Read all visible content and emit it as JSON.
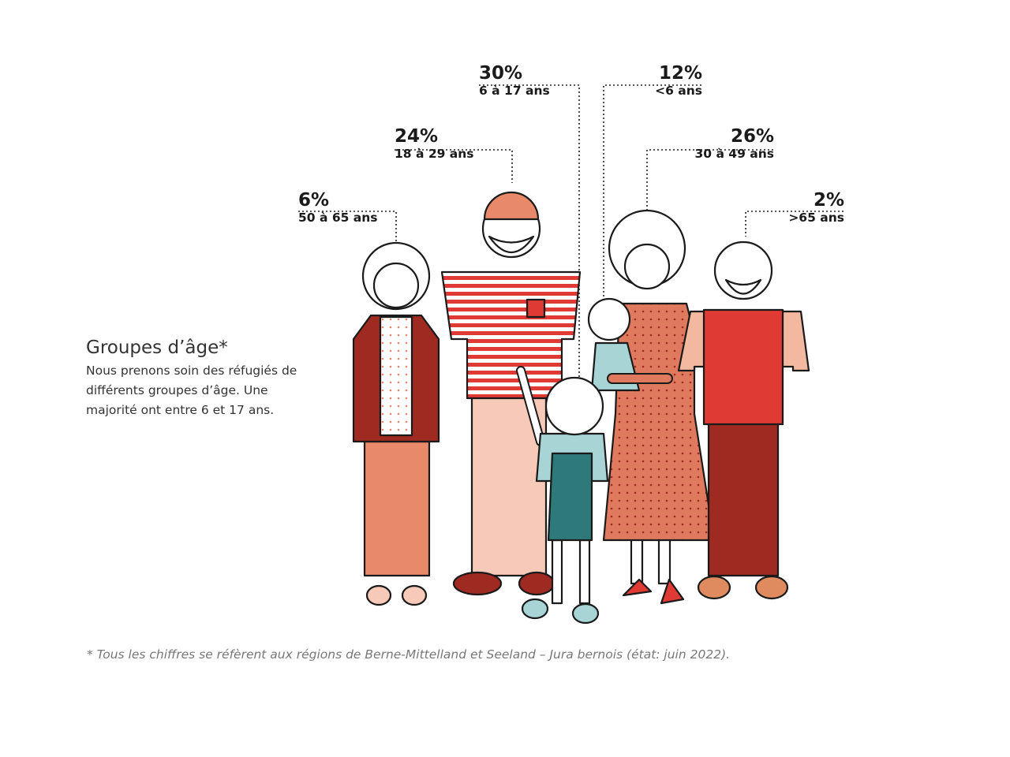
{
  "intro": {
    "title": "Groupes d’âge*",
    "text": "Nous prenons soin des réfugiés de différents groupes d’âge. Une majorité ont entre 6 et 17 ans."
  },
  "age_groups": [
    {
      "percent": "6%",
      "range": "50 à 65 ans",
      "value": 6
    },
    {
      "percent": "24%",
      "range": "18 à 29 ans",
      "value": 24
    },
    {
      "percent": "30%",
      "range": "6 à 17 ans",
      "value": 30
    },
    {
      "percent": "12%",
      "range": "<6 ans",
      "value": 12
    },
    {
      "percent": "26%",
      "range": "30 à 49 ans",
      "value": 26
    },
    {
      "percent": "2%",
      "range": ">65 ans",
      "value": 2
    }
  ],
  "footnote": "* Tous les chiffres se réfèrent aux régions de Berne-Mittelland et Seeland – Jura bernois (état: juin 2022).",
  "colors": {
    "dark_red": "#9e2a22",
    "red": "#e03a34",
    "salmon": "#e8896a",
    "light_pink": "#f6c9b8",
    "teal": "#2e7a7a",
    "light_blue": "#a8d4d6"
  }
}
